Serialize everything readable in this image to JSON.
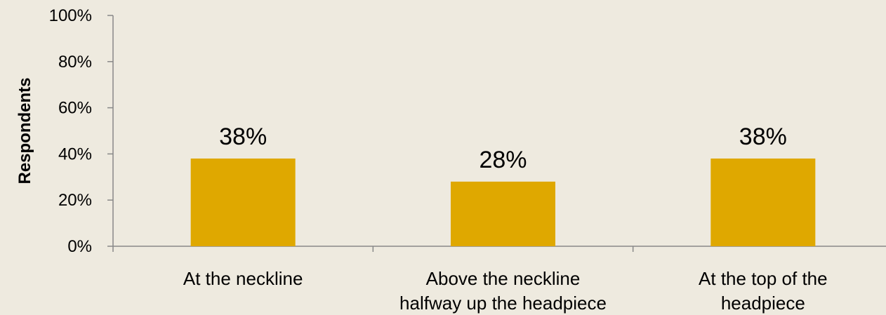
{
  "chart_data": {
    "type": "bar",
    "title": "",
    "xlabel": "",
    "ylabel": "Respondents",
    "ylim": [
      0,
      100
    ],
    "yticks": [
      "0%",
      "20%",
      "40%",
      "60%",
      "80%",
      "100%"
    ],
    "grid": false,
    "legend": "none",
    "categories": [
      [
        "At the neckline"
      ],
      [
        "Above the neckline",
        "halfway up the headpiece"
      ],
      [
        "At the top of the",
        "headpiece"
      ]
    ],
    "values": [
      38,
      28,
      38
    ],
    "data_labels": [
      "38%",
      "28%",
      "38%"
    ],
    "colors": {
      "bar": "#DFA800",
      "axis": "#888888",
      "background": "#EEEADF"
    }
  }
}
